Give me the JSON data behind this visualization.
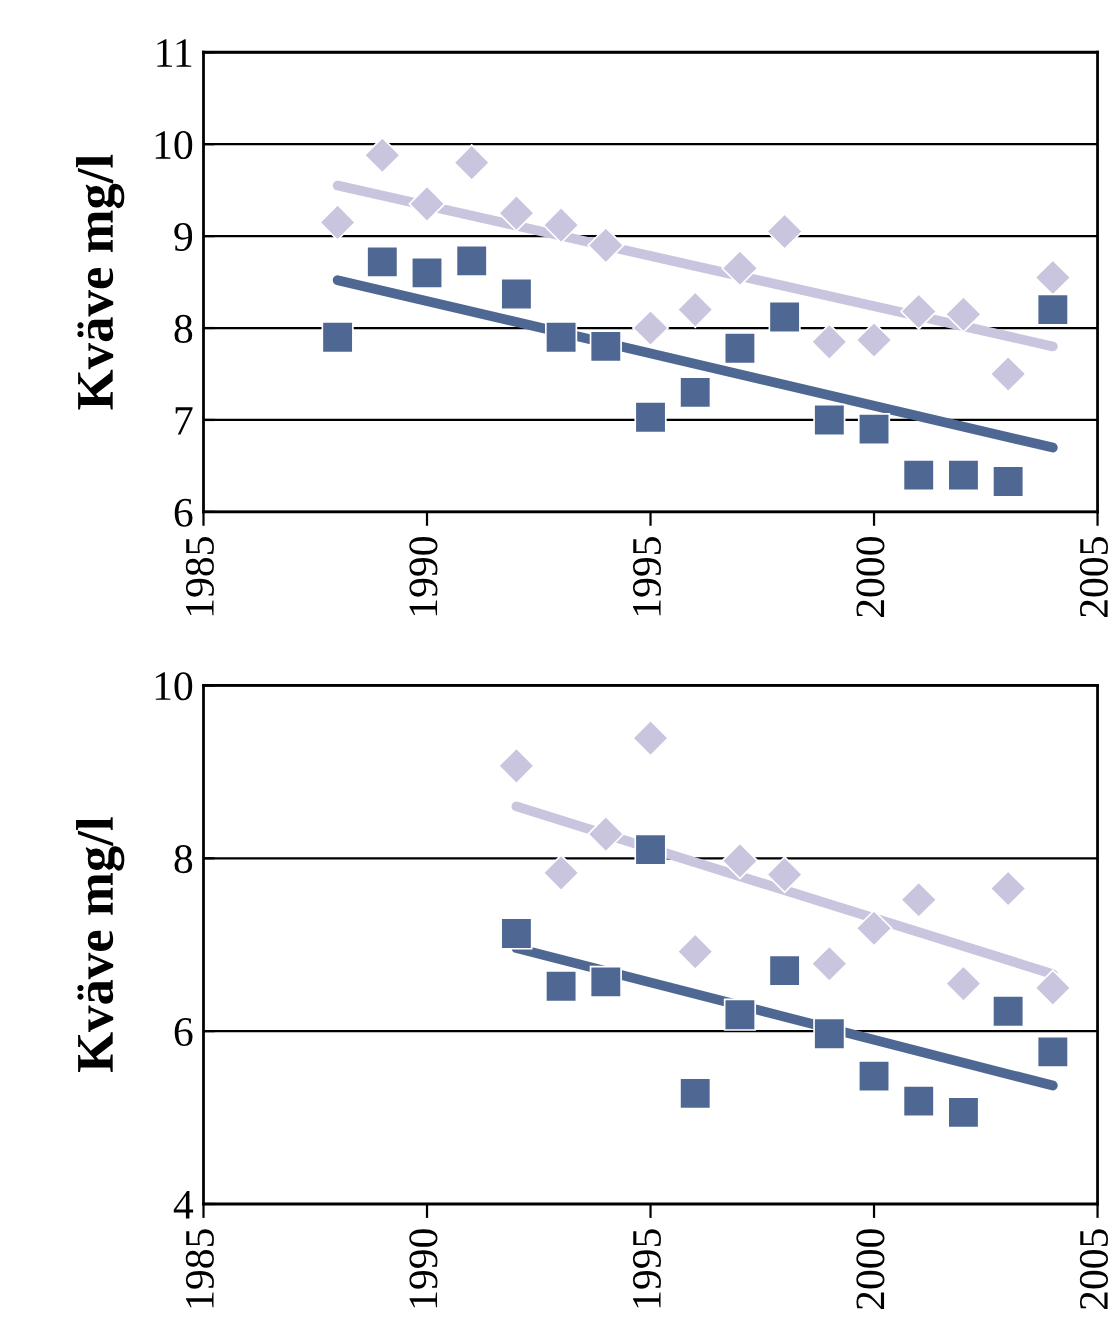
{
  "chart_data": [
    {
      "type": "scatter",
      "ylabel": "Kväve mg/l",
      "xlim": [
        1985,
        2005
      ],
      "xticks": [
        1985,
        1990,
        1995,
        2000,
        2005
      ],
      "ylim": [
        6,
        11
      ],
      "yticks": [
        6,
        7,
        8,
        9,
        10,
        11
      ],
      "grid": "y",
      "x": [
        1988,
        1989,
        1990,
        1991,
        1992,
        1993,
        1994,
        1995,
        1996,
        1997,
        1998,
        1999,
        2000,
        2001,
        2002,
        2003,
        2004
      ],
      "series": [
        {
          "marker": "diamond",
          "color": "#c9c5de",
          "values": [
            9.15,
            9.88,
            9.35,
            9.8,
            9.25,
            9.12,
            8.9,
            8.0,
            8.2,
            8.65,
            9.05,
            7.85,
            7.87,
            8.18,
            8.15,
            7.5,
            8.55
          ]
        },
        {
          "marker": "square",
          "color": "#4f6893",
          "values": [
            7.9,
            8.72,
            8.6,
            8.73,
            8.37,
            7.9,
            7.8,
            7.03,
            7.3,
            7.78,
            8.12,
            7.0,
            6.9,
            6.4,
            6.4,
            6.33,
            8.2
          ]
        },
        {
          "type": "line",
          "line_style": "solid",
          "color": "#c9c5de",
          "x": [
            1988,
            2004
          ],
          "values": [
            9.55,
            7.8
          ]
        },
        {
          "type": "line",
          "line_style": "solid",
          "color": "#4f6893",
          "x": [
            1988,
            2004
          ],
          "values": [
            8.52,
            6.7
          ]
        }
      ]
    },
    {
      "type": "scatter",
      "ylabel": "Kväve mg/l",
      "xlim": [
        1985,
        2005
      ],
      "xticks": [
        1985,
        1990,
        1995,
        2000,
        2005
      ],
      "ylim": [
        4,
        10
      ],
      "yticks": [
        4,
        6,
        8,
        10
      ],
      "grid": "y",
      "x": [
        1992,
        1993,
        1994,
        1995,
        1996,
        1997,
        1998,
        1999,
        2000,
        2001,
        2002,
        2003,
        2004
      ],
      "series": [
        {
          "marker": "diamond",
          "color": "#c9c5de",
          "values": [
            9.07,
            7.83,
            8.28,
            9.39,
            6.92,
            7.97,
            7.81,
            6.78,
            7.19,
            7.52,
            6.55,
            7.65,
            6.5
          ]
        },
        {
          "marker": "square",
          "color": "#4f6893",
          "values": [
            7.13,
            6.52,
            6.57,
            8.1,
            5.28,
            6.19,
            6.7,
            5.97,
            5.48,
            5.19,
            5.06,
            6.23,
            5.76
          ]
        },
        {
          "type": "line",
          "line_style": "solid",
          "color": "#c9c5de",
          "x": [
            1992,
            2004
          ],
          "values": [
            8.6,
            6.66
          ]
        },
        {
          "type": "line",
          "line_style": "solid",
          "color": "#4f6893",
          "x": [
            1992,
            2004
          ],
          "values": [
            6.96,
            5.37
          ]
        }
      ]
    }
  ]
}
